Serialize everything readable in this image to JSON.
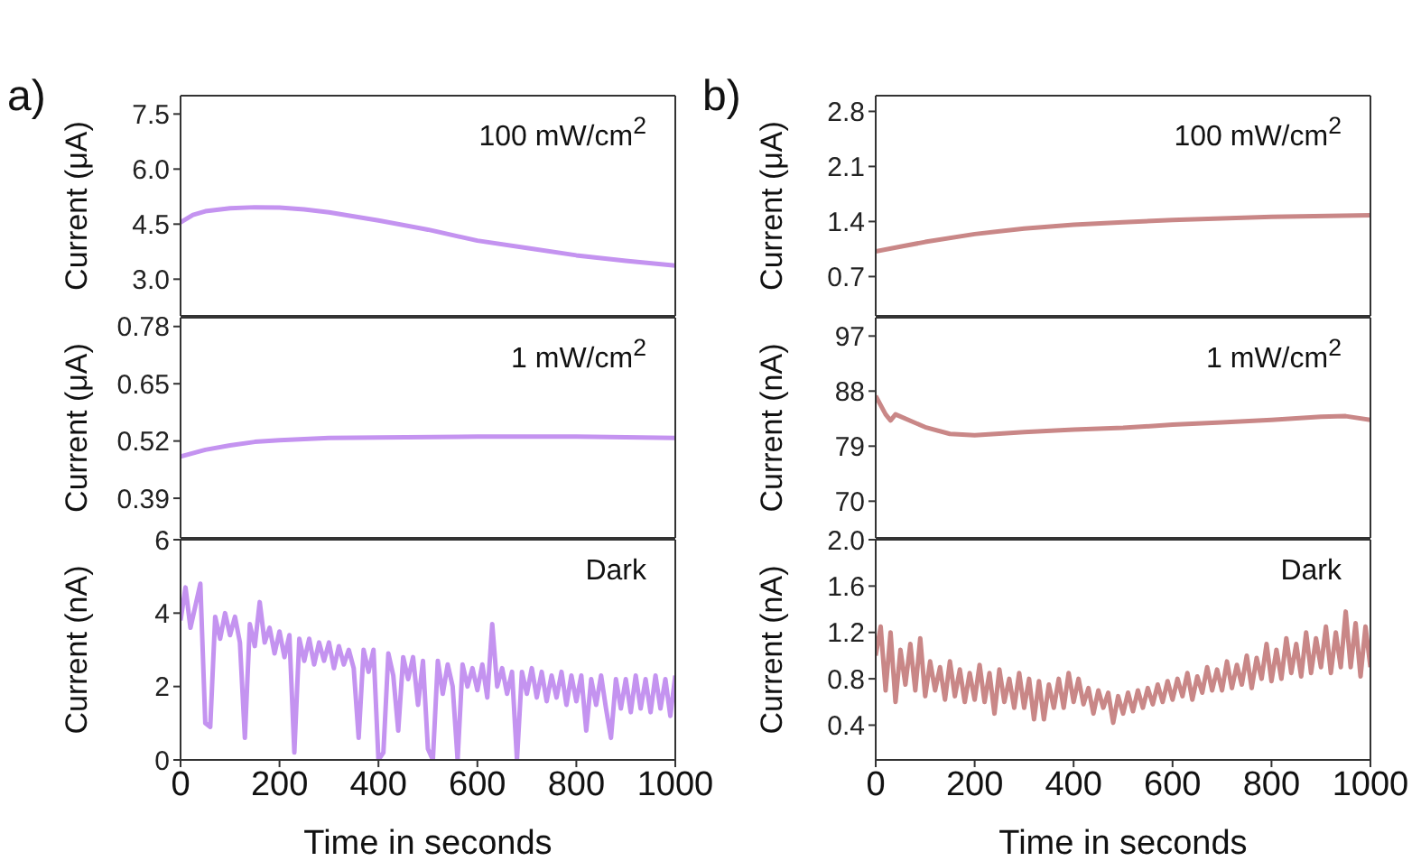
{
  "chart_data": [
    {
      "type": "line",
      "title": "a)",
      "ylabel": "Current (μA)",
      "annotations": [
        "100 mW/cm$^{2}$"
      ],
      "x": [
        0,
        25,
        50,
        100,
        150,
        200,
        250,
        300,
        400,
        500,
        600,
        700,
        800,
        900,
        1000
      ],
      "series": [
        {
          "color": "#c493f0",
          "values": [
            4.55,
            4.75,
            4.85,
            4.93,
            4.96,
            4.95,
            4.9,
            4.82,
            4.6,
            4.35,
            4.05,
            3.85,
            3.65,
            3.5,
            3.37
          ]
        }
      ],
      "xlim": [
        0,
        1000
      ],
      "xticks": [
        0,
        200,
        400,
        600,
        800,
        1000
      ],
      "ylim": [
        2.0,
        8.0
      ],
      "yticks": [
        {
          "value": 3,
          "label": "3.0"
        },
        4.5,
        {
          "value": 6,
          "label": "6.0"
        },
        7.5
      ],
      "tick_labels": "y"
    },
    {
      "type": "line",
      "ylabel": "Current (μA)",
      "annotations": [
        "1 mW/cm$^{2}$"
      ],
      "x": [
        0,
        50,
        100,
        150,
        200,
        300,
        400,
        600,
        800,
        1000
      ],
      "series": [
        {
          "color": "#c493f0",
          "values": [
            0.485,
            0.5,
            0.51,
            0.518,
            0.522,
            0.527,
            0.528,
            0.53,
            0.53,
            0.527
          ]
        }
      ],
      "xlim": [
        0,
        1000
      ],
      "xticks": [
        0,
        200,
        400,
        600,
        800,
        1000
      ],
      "ylim": [
        0.3,
        0.8
      ],
      "yticks": [
        0.39,
        0.52,
        0.65,
        0.78
      ],
      "tick_labels": "y"
    },
    {
      "type": "line",
      "ylabel": "Current (nA)",
      "xlabel": "Time in seconds",
      "annotations": [
        "Dark"
      ],
      "x": [
        0,
        10,
        20,
        30,
        40,
        50,
        60,
        70,
        80,
        90,
        100,
        110,
        120,
        130,
        140,
        150,
        160,
        170,
        180,
        190,
        200,
        210,
        220,
        230,
        240,
        250,
        260,
        270,
        280,
        290,
        300,
        310,
        320,
        330,
        340,
        350,
        360,
        370,
        380,
        390,
        400,
        410,
        420,
        430,
        440,
        450,
        460,
        470,
        480,
        490,
        500,
        510,
        520,
        530,
        540,
        550,
        560,
        570,
        580,
        590,
        600,
        610,
        620,
        630,
        640,
        650,
        660,
        670,
        680,
        690,
        700,
        710,
        720,
        730,
        740,
        750,
        760,
        770,
        780,
        790,
        800,
        810,
        820,
        830,
        840,
        850,
        860,
        870,
        880,
        890,
        900,
        910,
        920,
        930,
        940,
        950,
        960,
        970,
        980,
        990,
        1000
      ],
      "series": [
        {
          "color": "#c493f0",
          "values": [
            3.8,
            4.7,
            3.6,
            4.2,
            4.8,
            1.0,
            0.9,
            3.9,
            3.3,
            4.0,
            3.4,
            3.9,
            3.2,
            0.6,
            3.7,
            3.1,
            4.3,
            3.2,
            3.6,
            2.9,
            3.5,
            2.8,
            3.4,
            0.2,
            3.3,
            2.7,
            3.3,
            2.6,
            3.2,
            2.7,
            3.2,
            2.5,
            3.1,
            2.6,
            3.0,
            2.5,
            0.6,
            3.0,
            2.4,
            3.0,
            0.0,
            0.2,
            2.9,
            2.3,
            0.8,
            2.8,
            2.2,
            2.8,
            1.5,
            2.7,
            0.3,
            0.0,
            2.7,
            1.8,
            2.6,
            2.0,
            0.0,
            2.6,
            2.0,
            2.5,
            1.9,
            2.6,
            1.7,
            3.7,
            2.0,
            2.5,
            1.8,
            2.4,
            0.0,
            2.4,
            1.8,
            2.5,
            1.7,
            2.4,
            1.6,
            2.3,
            1.7,
            2.4,
            1.5,
            2.3,
            1.6,
            2.3,
            0.8,
            2.2,
            1.5,
            2.3,
            1.4,
            0.6,
            2.2,
            1.4,
            2.2,
            1.3,
            2.3,
            1.4,
            2.2,
            1.3,
            2.3,
            1.4,
            2.2,
            1.2,
            2.3
          ]
        }
      ],
      "xlim": [
        0,
        1000
      ],
      "xticks": [
        0,
        200,
        400,
        600,
        800,
        1000
      ],
      "ylim": [
        0,
        6
      ],
      "yticks": [
        0,
        2,
        4,
        6
      ]
    },
    {
      "type": "line",
      "title": "b)",
      "ylabel": "Current (μA)",
      "annotations": [
        "100 mW/cm$^{2}$"
      ],
      "x": [
        0,
        50,
        100,
        200,
        300,
        400,
        500,
        600,
        800,
        1000
      ],
      "series": [
        {
          "color": "#c98787",
          "values": [
            1.02,
            1.08,
            1.14,
            1.24,
            1.31,
            1.36,
            1.39,
            1.42,
            1.46,
            1.48
          ]
        }
      ],
      "xlim": [
        0,
        1000
      ],
      "xticks": [
        0,
        200,
        400,
        600,
        800,
        1000
      ],
      "ylim": [
        0.2,
        3.0
      ],
      "yticks": [
        0.7,
        1.4,
        2.1,
        2.8
      ],
      "tick_labels": "y"
    },
    {
      "type": "line",
      "ylabel": "Current (nA)",
      "annotations": [
        "1 mW/cm$^{2}$"
      ],
      "x": [
        0,
        20,
        30,
        40,
        100,
        150,
        200,
        300,
        400,
        500,
        600,
        700,
        800,
        900,
        950,
        1000
      ],
      "series": [
        {
          "color": "#c98787",
          "values": [
            87.2,
            84.2,
            83.2,
            84.2,
            82.1,
            81.0,
            80.8,
            81.3,
            81.7,
            82.0,
            82.5,
            82.9,
            83.3,
            83.8,
            83.9,
            83.3
          ]
        }
      ],
      "xlim": [
        0,
        1000
      ],
      "xticks": [
        0,
        200,
        400,
        600,
        800,
        1000
      ],
      "ylim": [
        64,
        100
      ],
      "yticks": [
        70,
        79,
        88,
        97
      ],
      "tick_labels": "y"
    },
    {
      "type": "line",
      "ylabel": "Current (nA)",
      "xlabel": "Time in seconds",
      "annotations": [
        "Dark"
      ],
      "x": [
        0,
        10,
        20,
        30,
        40,
        50,
        60,
        70,
        80,
        90,
        100,
        110,
        120,
        130,
        140,
        150,
        160,
        170,
        180,
        190,
        200,
        210,
        220,
        230,
        240,
        250,
        260,
        270,
        280,
        290,
        300,
        310,
        320,
        330,
        340,
        350,
        360,
        370,
        380,
        390,
        400,
        410,
        420,
        430,
        440,
        450,
        460,
        470,
        480,
        490,
        500,
        510,
        520,
        530,
        540,
        550,
        560,
        570,
        580,
        590,
        600,
        610,
        620,
        630,
        640,
        650,
        660,
        670,
        680,
        690,
        700,
        710,
        720,
        730,
        740,
        750,
        760,
        770,
        780,
        790,
        800,
        810,
        820,
        830,
        840,
        850,
        860,
        870,
        880,
        890,
        900,
        910,
        920,
        930,
        940,
        950,
        960,
        970,
        980,
        990,
        1000
      ],
      "series": [
        {
          "color": "#c98787",
          "values": [
            1.0,
            1.25,
            0.7,
            1.2,
            0.6,
            1.05,
            0.75,
            1.1,
            0.7,
            1.15,
            0.65,
            0.95,
            0.7,
            0.9,
            0.62,
            0.95,
            0.65,
            0.88,
            0.6,
            0.85,
            0.62,
            0.92,
            0.6,
            0.85,
            0.5,
            0.88,
            0.6,
            0.8,
            0.55,
            0.85,
            0.55,
            0.8,
            0.45,
            0.78,
            0.45,
            0.75,
            0.55,
            0.8,
            0.55,
            0.85,
            0.6,
            0.8,
            0.58,
            0.72,
            0.5,
            0.7,
            0.55,
            0.68,
            0.42,
            0.65,
            0.5,
            0.68,
            0.52,
            0.7,
            0.55,
            0.72,
            0.58,
            0.75,
            0.6,
            0.78,
            0.62,
            0.8,
            0.65,
            0.85,
            0.62,
            0.82,
            0.68,
            0.9,
            0.7,
            0.88,
            0.7,
            0.95,
            0.72,
            0.92,
            0.75,
            1.0,
            0.72,
            0.98,
            0.8,
            1.1,
            0.78,
            1.05,
            0.8,
            1.15,
            0.85,
            1.1,
            0.82,
            1.2,
            0.85,
            1.15,
            0.9,
            1.25,
            0.85,
            1.2,
            0.9,
            1.38,
            0.9,
            1.28,
            0.82,
            1.25,
            0.9
          ]
        }
      ],
      "xlim": [
        0,
        1000
      ],
      "xticks": [
        0,
        200,
        400,
        600,
        800,
        1000
      ],
      "ylim": [
        0.1,
        2.0
      ],
      "yticks": [
        0.4,
        0.8,
        1.2,
        1.6,
        {
          "value": 2,
          "label": "2.0"
        }
      ]
    }
  ]
}
